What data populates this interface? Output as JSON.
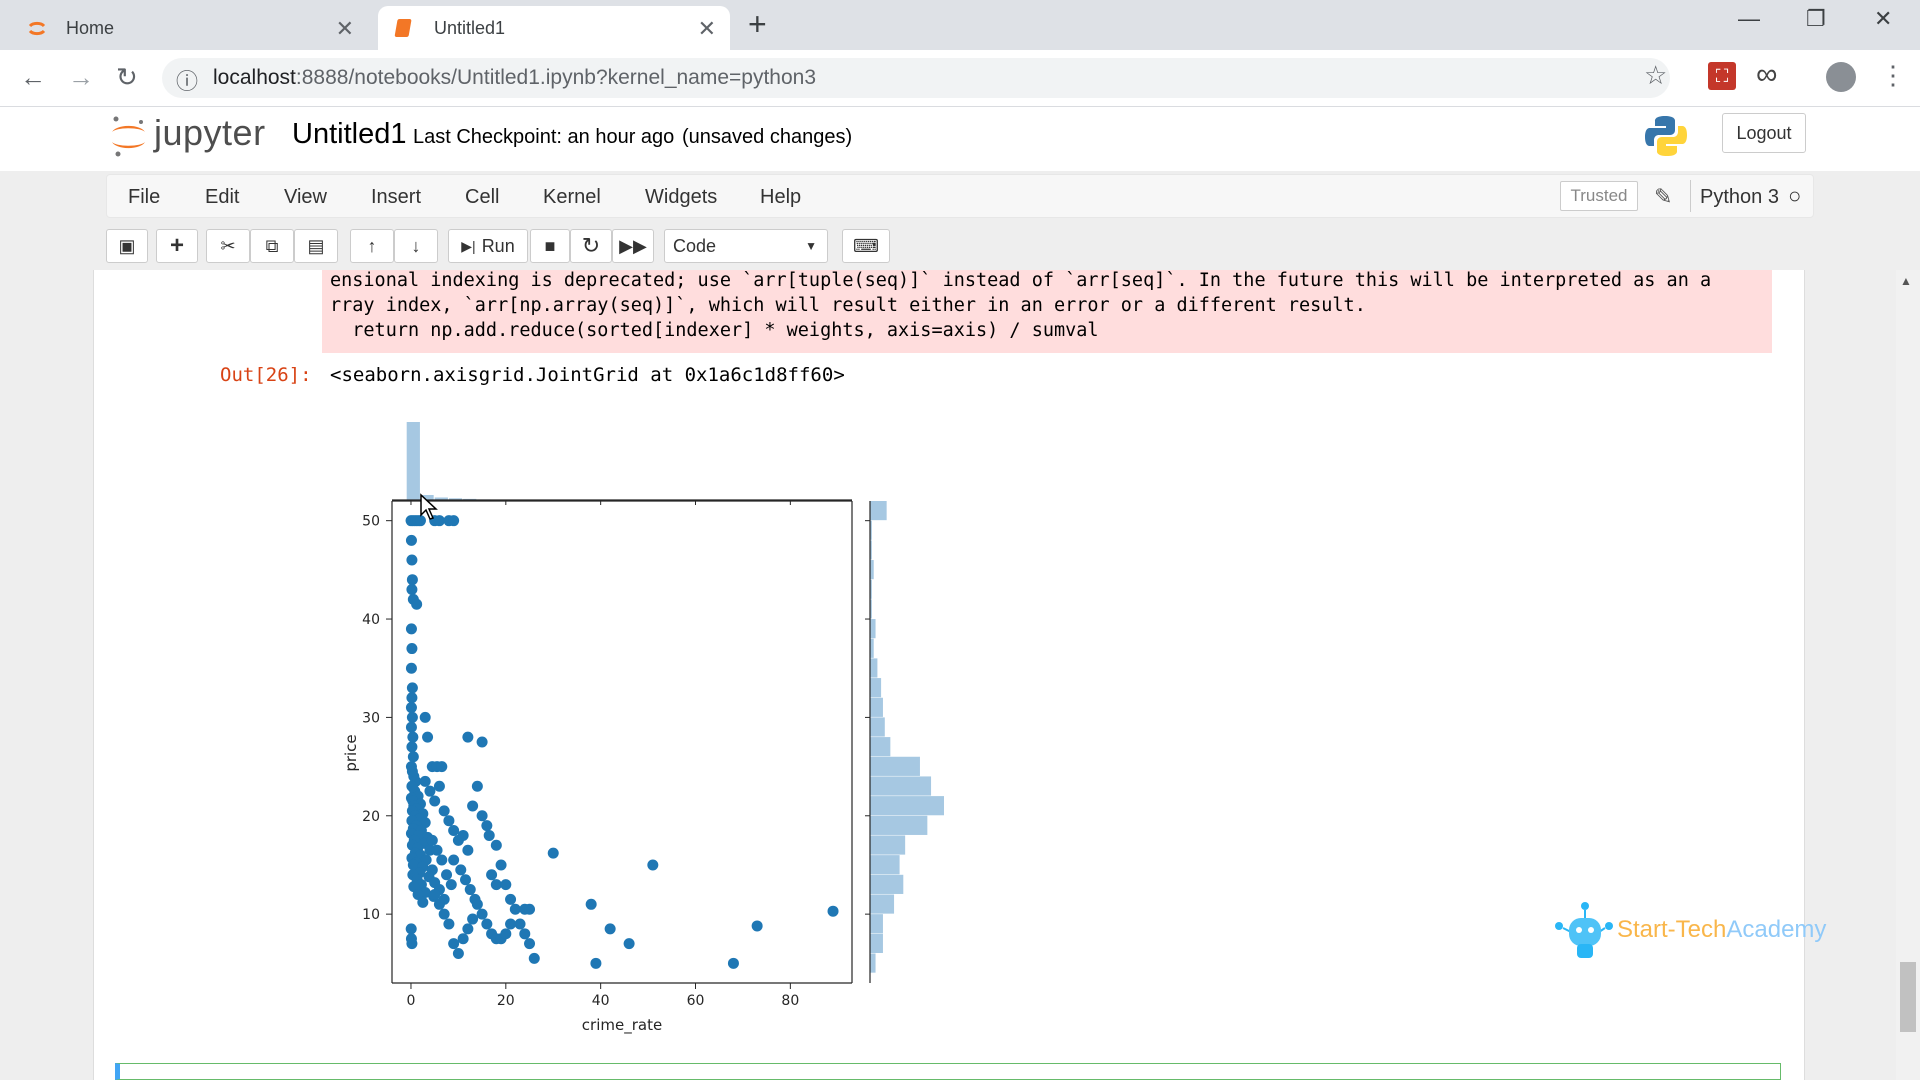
{
  "browser": {
    "tabs": [
      {
        "label": "Home",
        "close": "✕"
      },
      {
        "label": "Untitled1",
        "close": "✕"
      }
    ],
    "new_tab": "+",
    "window_controls": {
      "minimize": "—",
      "restore": "❐",
      "close": "✕"
    },
    "nav": {
      "back": "←",
      "forward": "→",
      "reload": "↻"
    },
    "url_host": "localhost",
    "url_rest": ":8888/notebooks/Untitled1.ipynb?kernel_name=python3",
    "info_icon": "ⓘ",
    "star_icon": "☆",
    "ext_icon_1": "⛶",
    "ext_icon_2": "∞",
    "menu_icon": "⋮"
  },
  "jupyter": {
    "logo_text": "jupyter",
    "notebook_name": "Untitled1",
    "checkpoint": "Last Checkpoint: an hour ago",
    "unsaved": "(unsaved changes)",
    "logout": "Logout",
    "menus": [
      "File",
      "Edit",
      "View",
      "Insert",
      "Cell",
      "Kernel",
      "Widgets",
      "Help"
    ],
    "trusted": "Trusted",
    "pencil": "✎",
    "kernel": "Python 3",
    "kernel_indicator": "○",
    "toolbar": {
      "save": "💾",
      "add": "+",
      "cut": "✂",
      "copy": "⧉",
      "paste": "📋",
      "up": "🡑",
      "down": "🡓",
      "run": "Run",
      "run_icon": "⏭",
      "stop": "■",
      "restart": "↻",
      "fast_forward": "⏩",
      "cell_type": "Code",
      "keyboard": "⌨"
    }
  },
  "output": {
    "stderr_lines": [
      "ensional indexing is deprecated; use `arr[tuple(seq)]` instead of `arr[seq]`. In the future this will be interpreted as an a",
      "rray index, `arr[np.array(seq)]`, which will result either in an error or a different result.",
      "  return np.add.reduce(sorted[indexer] * weights, axis=axis) / sumval"
    ],
    "out_prompt": "Out[26]:",
    "out_text": "<seaborn.axisgrid.JointGrid at 0x1a6c1d8ff60>"
  },
  "watermark": {
    "part1": "Start-Tech",
    "part2": "Academy"
  },
  "chart_data": {
    "type": "scatter",
    "xlabel": "crime_rate",
    "ylabel": "price",
    "xlim": [
      -4,
      93
    ],
    "ylim": [
      3,
      52
    ],
    "xticks": [
      0,
      20,
      40,
      60,
      80
    ],
    "yticks": [
      10,
      20,
      30,
      40,
      50
    ],
    "color": "#1f77b4",
    "hist_color": "#a6c8e2",
    "points": [
      [
        0.02,
        50
      ],
      [
        0.5,
        50
      ],
      [
        1,
        50
      ],
      [
        1.5,
        50
      ],
      [
        2,
        50
      ],
      [
        5,
        50
      ],
      [
        6,
        50
      ],
      [
        8,
        50
      ],
      [
        9,
        50
      ],
      [
        0.1,
        48
      ],
      [
        0.2,
        46
      ],
      [
        0.3,
        44
      ],
      [
        0.2,
        43
      ],
      [
        0.5,
        42
      ],
      [
        1.2,
        41.5
      ],
      [
        0.1,
        39
      ],
      [
        0.2,
        37
      ],
      [
        0.1,
        35
      ],
      [
        0.3,
        33
      ],
      [
        0.2,
        32
      ],
      [
        0.1,
        31
      ],
      [
        0.3,
        30
      ],
      [
        0.1,
        29
      ],
      [
        0.4,
        28
      ],
      [
        0.2,
        27
      ],
      [
        0.5,
        26
      ],
      [
        0.1,
        25
      ],
      [
        0.3,
        24.5
      ],
      [
        0.6,
        24
      ],
      [
        1,
        23.5
      ],
      [
        0.2,
        23
      ],
      [
        0.8,
        22.5
      ],
      [
        1.5,
        22
      ],
      [
        0.1,
        21.8
      ],
      [
        0.4,
        21.5
      ],
      [
        2,
        21.2
      ],
      [
        0.6,
        21
      ],
      [
        1.2,
        20.7
      ],
      [
        0.3,
        20.5
      ],
      [
        2.5,
        20.2
      ],
      [
        0.9,
        20
      ],
      [
        1.8,
        19.7
      ],
      [
        0.2,
        19.5
      ],
      [
        3,
        19.3
      ],
      [
        1.1,
        19
      ],
      [
        0.5,
        18.7
      ],
      [
        2.2,
        18.5
      ],
      [
        0.1,
        18.2
      ],
      [
        1.6,
        18
      ],
      [
        3.5,
        17.8
      ],
      [
        0.7,
        17.5
      ],
      [
        2.8,
        17.2
      ],
      [
        0.3,
        17
      ],
      [
        1.4,
        16.7
      ],
      [
        4,
        16.5
      ],
      [
        0.9,
        16.2
      ],
      [
        2,
        16
      ],
      [
        0.2,
        15.7
      ],
      [
        3.2,
        15.5
      ],
      [
        1.1,
        15.2
      ],
      [
        0.5,
        15
      ],
      [
        2.5,
        14.8
      ],
      [
        4.5,
        14.5
      ],
      [
        1.8,
        14.2
      ],
      [
        0.4,
        14
      ],
      [
        3.8,
        13.8
      ],
      [
        1.3,
        13.5
      ],
      [
        5,
        13.2
      ],
      [
        2.2,
        13
      ],
      [
        0.6,
        12.8
      ],
      [
        6,
        12.5
      ],
      [
        3,
        12.2
      ],
      [
        1.5,
        12
      ],
      [
        4.8,
        11.8
      ],
      [
        7,
        11.5
      ],
      [
        2.5,
        11.2
      ],
      [
        3,
        30
      ],
      [
        3.5,
        28
      ],
      [
        4.5,
        25
      ],
      [
        5.5,
        25
      ],
      [
        6.5,
        25
      ],
      [
        3,
        23.5
      ],
      [
        4,
        22.5
      ],
      [
        5,
        21.5
      ],
      [
        6,
        23
      ],
      [
        7,
        20.5
      ],
      [
        8,
        19.5
      ],
      [
        9,
        18.5
      ],
      [
        10,
        17.5
      ],
      [
        11,
        18
      ],
      [
        12,
        16.5
      ],
      [
        9,
        15.5
      ],
      [
        10.5,
        14.5
      ],
      [
        11.5,
        13.5
      ],
      [
        12.5,
        12.5
      ],
      [
        13.5,
        11.5
      ],
      [
        8.5,
        13
      ],
      [
        7.5,
        14
      ],
      [
        6.5,
        15.5
      ],
      [
        5.5,
        16.5
      ],
      [
        4.5,
        17.5
      ],
      [
        12,
        28
      ],
      [
        15,
        27.5
      ],
      [
        14,
        23
      ],
      [
        13,
        21
      ],
      [
        15,
        20
      ],
      [
        16,
        19
      ],
      [
        16.5,
        18
      ],
      [
        18,
        17
      ],
      [
        19,
        15
      ],
      [
        17,
        14
      ],
      [
        18,
        13
      ],
      [
        20,
        13
      ],
      [
        21,
        11.5
      ],
      [
        22,
        10.5
      ],
      [
        24,
        10.5
      ],
      [
        25,
        10.5
      ],
      [
        23,
        9
      ],
      [
        24,
        8
      ],
      [
        25,
        7
      ],
      [
        26,
        5.5
      ],
      [
        14,
        11
      ],
      [
        15,
        10
      ],
      [
        16,
        9
      ],
      [
        17,
        8
      ],
      [
        18,
        7.5
      ],
      [
        19,
        7.5
      ],
      [
        20,
        8
      ],
      [
        21,
        9
      ],
      [
        13,
        9.5
      ],
      [
        12,
        8.5
      ],
      [
        11,
        7.5
      ],
      [
        10,
        6
      ],
      [
        9,
        7
      ],
      [
        8,
        9
      ],
      [
        7,
        10
      ],
      [
        6,
        11
      ],
      [
        5,
        12
      ],
      [
        0.05,
        8.5
      ],
      [
        0.1,
        7.5
      ],
      [
        0.2,
        7
      ],
      [
        30,
        16.2
      ],
      [
        38,
        11
      ],
      [
        39,
        5
      ],
      [
        42,
        8.5
      ],
      [
        46,
        7
      ],
      [
        51,
        15
      ],
      [
        68,
        5
      ],
      [
        73,
        8.8
      ],
      [
        89,
        10.3
      ]
    ],
    "top_hist": {
      "bins_x": [
        0.6,
        3.5,
        6.5,
        9.5,
        12.5,
        15.5
      ],
      "counts": [
        280,
        18,
        9,
        6,
        4,
        2
      ]
    },
    "right_hist": {
      "bins_y": [
        5,
        7,
        9,
        11,
        13,
        15,
        17,
        19,
        21,
        23,
        25,
        27,
        29,
        31,
        33,
        35,
        37,
        39,
        41,
        43,
        45,
        47,
        49,
        51
      ],
      "counts": [
        6,
        14,
        14,
        26,
        36,
        32,
        38,
        62,
        80,
        66,
        54,
        22,
        16,
        14,
        12,
        8,
        4,
        6,
        2,
        2,
        4,
        2,
        2,
        18
      ]
    }
  }
}
